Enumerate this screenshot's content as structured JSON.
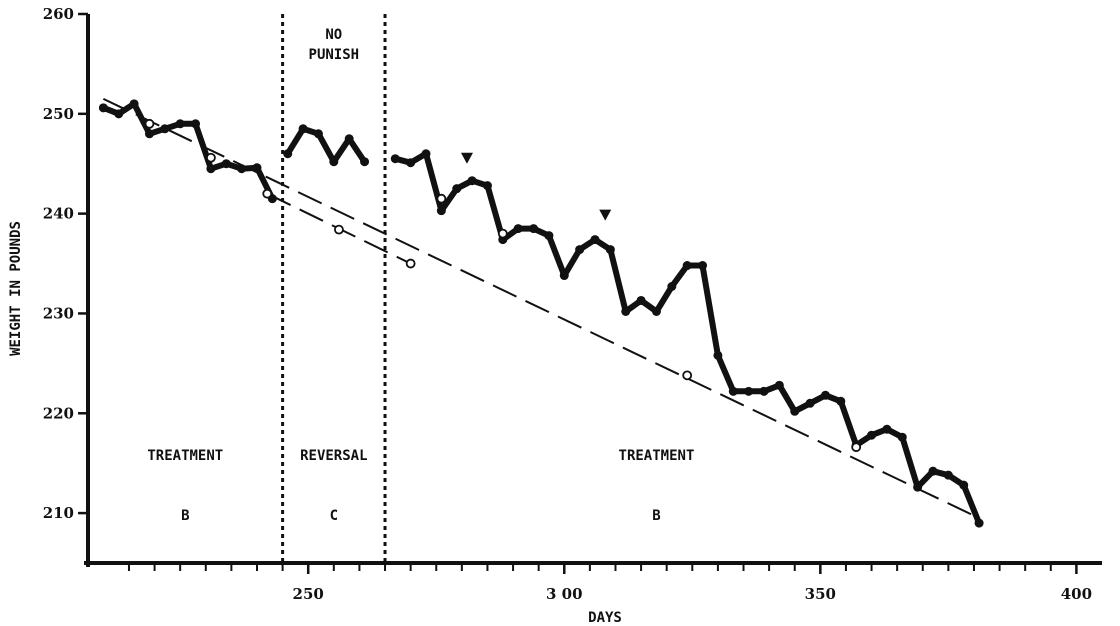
{
  "chart_data": {
    "type": "line",
    "title": "",
    "xlabel": "DAYS",
    "ylabel": "WEIGHT IN POUNDS",
    "xlim": [
      207,
      405
    ],
    "ylim": [
      205,
      260
    ],
    "x_ticks": [
      250,
      300,
      350,
      400
    ],
    "x_tick_labels": [
      "250",
      "3 00",
      "350",
      "400"
    ],
    "x_minor_ticks": [
      215,
      220,
      225,
      230,
      235,
      240,
      245,
      255,
      260,
      265,
      270,
      275,
      280,
      285,
      290,
      295,
      305,
      310,
      315,
      320,
      325,
      330,
      335,
      340,
      345,
      355,
      360,
      365,
      370,
      375,
      380,
      385,
      390,
      395
    ],
    "y_ticks": [
      210,
      220,
      230,
      240,
      250,
      260
    ],
    "grid": false,
    "phase_lines": [
      245,
      265
    ],
    "phases": [
      {
        "label": "TREATMENT",
        "condition": "B",
        "x_center": 226
      },
      {
        "label": "REVERSAL",
        "condition": "C",
        "x_center": 255
      },
      {
        "label": "TREATMENT",
        "condition": "B",
        "x_center": 318
      }
    ],
    "annotation": {
      "lines": [
        "NO",
        "PUNISH"
      ],
      "x": 255,
      "y": 257.5
    },
    "markers": [
      {
        "shape": "triangle-down",
        "x": 281,
        "y": 245.6
      },
      {
        "shape": "triangle-down",
        "x": 308,
        "y": 239.9
      }
    ],
    "series": [
      {
        "style": "solid",
        "segments": [
          [
            [
              210,
              250.6
            ],
            [
              213,
              250
            ],
            [
              216,
              251
            ],
            [
              219,
              248
            ],
            [
              222,
              248.5
            ],
            [
              225,
              249
            ],
            [
              228,
              249
            ],
            [
              231,
              244.5
            ],
            [
              234,
              245
            ],
            [
              237,
              244.5
            ],
            [
              240,
              244.6
            ],
            [
              243,
              241.5
            ]
          ],
          [
            [
              246,
              246
            ],
            [
              249,
              248.5
            ],
            [
              252,
              248
            ],
            [
              255,
              245.2
            ],
            [
              258,
              247.5
            ],
            [
              261,
              245.2
            ]
          ],
          [
            [
              267,
              245.5
            ],
            [
              270,
              245.1
            ],
            [
              273,
              246
            ],
            [
              276,
              240.3
            ],
            [
              279,
              242.5
            ],
            [
              282,
              243.3
            ],
            [
              285,
              242.8
            ],
            [
              288,
              237.4
            ],
            [
              291,
              238.5
            ],
            [
              294,
              238.5
            ],
            [
              297,
              237.8
            ],
            [
              300,
              233.8
            ],
            [
              303,
              236.4
            ],
            [
              306,
              237.4
            ],
            [
              309,
              236.4
            ],
            [
              312,
              230.2
            ],
            [
              315,
              231.3
            ],
            [
              318,
              230.2
            ],
            [
              321,
              232.7
            ],
            [
              324,
              234.8
            ],
            [
              327,
              234.8
            ],
            [
              330,
              225.8
            ],
            [
              333,
              222.2
            ],
            [
              336,
              222.2
            ],
            [
              339,
              222.2
            ],
            [
              342,
              222.8
            ],
            [
              345,
              220.2
            ],
            [
              348,
              221
            ],
            [
              351,
              221.8
            ],
            [
              354,
              221.2
            ],
            [
              357,
              216.8
            ],
            [
              360,
              217.8
            ],
            [
              363,
              218.4
            ],
            [
              366,
              217.6
            ],
            [
              369,
              212.6
            ],
            [
              372,
              214.2
            ],
            [
              375,
              213.8
            ],
            [
              378,
              212.8
            ],
            [
              381,
              209
            ]
          ]
        ]
      },
      {
        "style": "dashed",
        "points": [
          [
            210,
            251.5
          ],
          [
            381,
            209.5
          ]
        ]
      },
      {
        "style": "dashed-open-points",
        "points": [
          [
            242,
            242
          ],
          [
            256,
            238.4
          ],
          [
            270,
            235
          ]
        ]
      }
    ],
    "open_points": [
      [
        219,
        249
      ],
      [
        231,
        245.6
      ],
      [
        242,
        242
      ],
      [
        256,
        238.4
      ],
      [
        270,
        235
      ],
      [
        276,
        241.5
      ],
      [
        288,
        238
      ],
      [
        324,
        223.8
      ],
      [
        357,
        216.6
      ]
    ]
  }
}
